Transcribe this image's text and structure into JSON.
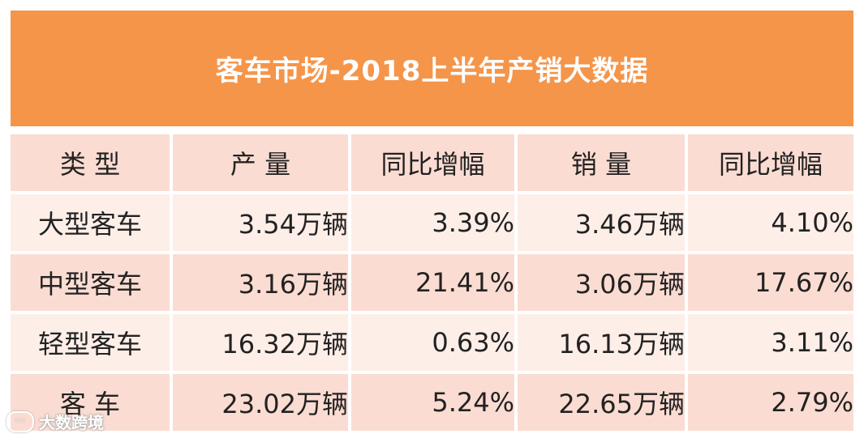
{
  "chart_data": {
    "type": "table",
    "title": "客车市场-2018上半年产销大数据",
    "columns": [
      "类 型",
      "产 量",
      "同比增幅",
      "销 量",
      "同比增幅"
    ],
    "rows": [
      [
        "大型客车",
        "3.54万辆",
        "3.39%",
        "3.46万辆",
        "4.10%"
      ],
      [
        "中型客车",
        "3.16万辆",
        "21.41%",
        "3.06万辆",
        "17.67%"
      ],
      [
        "轻型客车",
        "16.32万辆",
        "0.63%",
        "16.13万辆",
        "3.11%"
      ],
      [
        "客 车",
        "23.02万辆",
        "5.24%",
        "22.65万辆",
        "2.79%"
      ]
    ]
  },
  "colors": {
    "title_bg": "#f5954a",
    "row_pink": "#fbdcd2",
    "row_light": "#fdeee8"
  },
  "watermark": {
    "text": "大数跨境",
    "logo_icon": "chat-bubble-logo-icon"
  }
}
